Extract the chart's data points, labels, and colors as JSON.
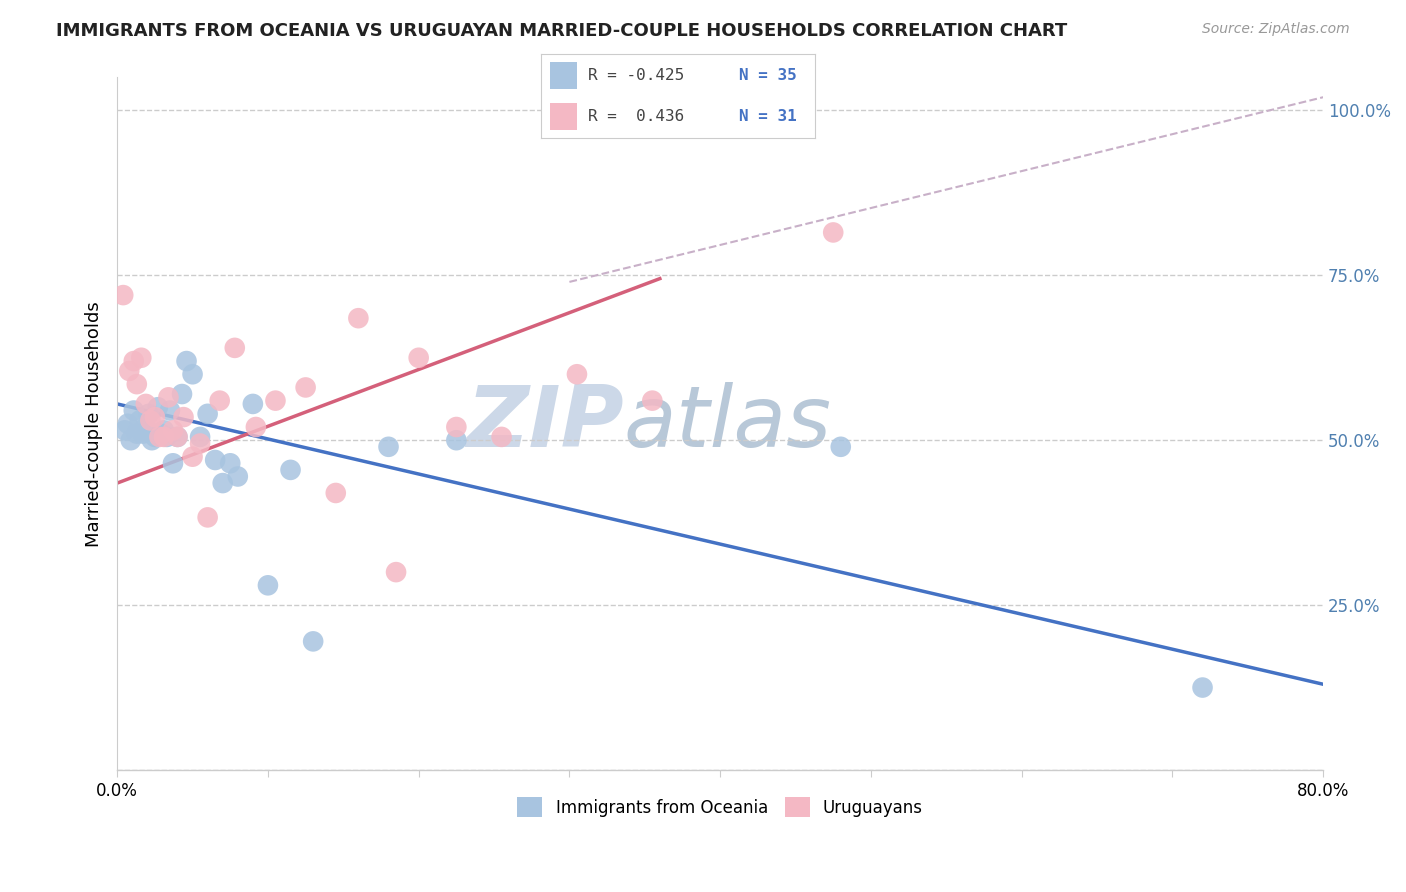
{
  "title": "IMMIGRANTS FROM OCEANIA VS URUGUAYAN MARRIED-COUPLE HOUSEHOLDS CORRELATION CHART",
  "source": "Source: ZipAtlas.com",
  "ylabel": "Married-couple Households",
  "y_ticks": [
    0.0,
    0.25,
    0.5,
    0.75,
    1.0
  ],
  "y_tick_labels": [
    "",
    "25.0%",
    "50.0%",
    "75.0%",
    "100.0%"
  ],
  "x_tick_positions": [
    0.0,
    0.1,
    0.2,
    0.3,
    0.4,
    0.5,
    0.6,
    0.7,
    0.8
  ],
  "legend_blue_R": "R = -0.425",
  "legend_blue_N": "N = 35",
  "legend_pink_R": "R =  0.436",
  "legend_pink_N": "N = 31",
  "blue_color": "#a8c4e0",
  "pink_color": "#f4b8c4",
  "blue_line_color": "#4472c4",
  "pink_line_color": "#d4607a",
  "dashed_line_color": "#c8b0c8",
  "watermark_zip": "ZIP",
  "watermark_atlas": "atlas",
  "watermark_color_zip": "#ccd8e8",
  "watermark_color_atlas": "#b8c8d8",
  "blue_scatter_x": [
    0.005,
    0.007,
    0.009,
    0.011,
    0.013,
    0.015,
    0.017,
    0.019,
    0.021,
    0.023,
    0.025,
    0.027,
    0.029,
    0.031,
    0.033,
    0.035,
    0.037,
    0.04,
    0.043,
    0.046,
    0.05,
    0.055,
    0.06,
    0.065,
    0.07,
    0.075,
    0.08,
    0.09,
    0.1,
    0.115,
    0.13,
    0.18,
    0.225,
    0.48,
    0.72
  ],
  "blue_scatter_y": [
    0.515,
    0.525,
    0.5,
    0.545,
    0.51,
    0.53,
    0.51,
    0.52,
    0.54,
    0.5,
    0.505,
    0.55,
    0.51,
    0.515,
    0.505,
    0.545,
    0.465,
    0.505,
    0.57,
    0.62,
    0.6,
    0.505,
    0.54,
    0.47,
    0.435,
    0.465,
    0.445,
    0.555,
    0.28,
    0.455,
    0.195,
    0.49,
    0.5,
    0.49,
    0.125
  ],
  "pink_scatter_x": [
    0.004,
    0.008,
    0.011,
    0.013,
    0.016,
    0.019,
    0.022,
    0.025,
    0.028,
    0.031,
    0.034,
    0.037,
    0.04,
    0.044,
    0.05,
    0.055,
    0.06,
    0.068,
    0.078,
    0.092,
    0.105,
    0.125,
    0.145,
    0.16,
    0.185,
    0.2,
    0.225,
    0.255,
    0.305,
    0.355,
    0.475
  ],
  "pink_scatter_y": [
    0.72,
    0.605,
    0.62,
    0.585,
    0.625,
    0.555,
    0.53,
    0.535,
    0.505,
    0.505,
    0.565,
    0.515,
    0.505,
    0.535,
    0.475,
    0.495,
    0.383,
    0.56,
    0.64,
    0.52,
    0.56,
    0.58,
    0.42,
    0.685,
    0.3,
    0.625,
    0.52,
    0.505,
    0.6,
    0.56,
    0.815
  ],
  "blue_trend_x": [
    0.0,
    0.8
  ],
  "blue_trend_y": [
    0.555,
    0.13
  ],
  "pink_trend_x": [
    0.0,
    0.36
  ],
  "pink_trend_y": [
    0.435,
    0.745
  ],
  "dashed_trend_x": [
    0.3,
    0.8
  ],
  "dashed_trend_y": [
    0.74,
    1.02
  ],
  "legend_box_blue": "#a8c4e0",
  "legend_box_pink": "#f4b8c4",
  "bottom_legend_blue": "Immigrants from Oceania",
  "bottom_legend_pink": "Uruguayans"
}
